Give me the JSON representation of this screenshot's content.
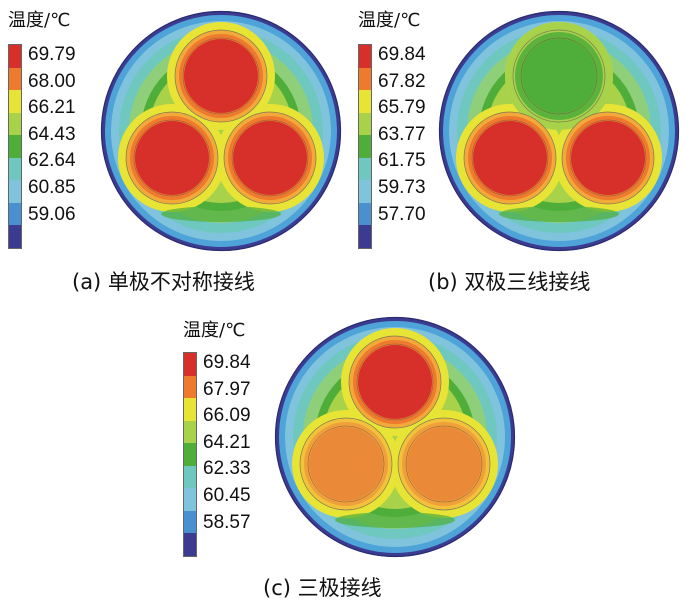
{
  "legend_title": "温度/℃",
  "colors": {
    "red": "#d7302a",
    "orange": "#ee7a2e",
    "yellow": "#e8e436",
    "lightgreen": "#a8d24a",
    "green": "#4fae3a",
    "cyan": "#6fc8c0",
    "lightblue": "#4ea3d8",
    "darkblue": "#3b3c91"
  },
  "legend_colors": [
    "#d7302a",
    "#ee7a2e",
    "#e8e436",
    "#a8d24a",
    "#4fae3a",
    "#6fc8c0",
    "#7fc3dc",
    "#4a8fd0",
    "#3b3c91"
  ],
  "panels": {
    "a": {
      "caption": "(a)  单极不对称接线",
      "ticks": [
        "69.79",
        "68.00",
        "66.21",
        "64.43",
        "62.64",
        "60.85",
        "59.06"
      ]
    },
    "b": {
      "caption": "(b)  双极三线接线",
      "ticks": [
        "69.84",
        "67.82",
        "65.79",
        "63.77",
        "61.75",
        "59.73",
        "57.70"
      ]
    },
    "c": {
      "caption": "(c)  三极接线",
      "ticks": [
        "69.84",
        "67.97",
        "66.09",
        "64.21",
        "62.33",
        "60.45",
        "58.57"
      ]
    }
  }
}
